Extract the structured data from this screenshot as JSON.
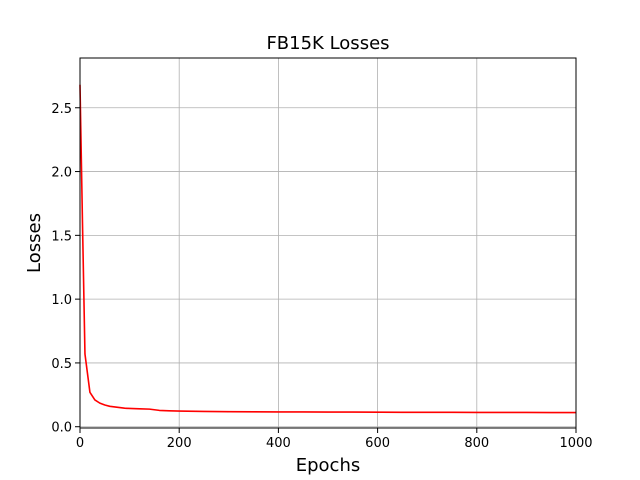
{
  "chart_data": {
    "type": "line",
    "title": "FB15K Losses",
    "xlabel": "Epochs",
    "ylabel": "Losses",
    "xlim": [
      0,
      1000
    ],
    "ylim": [
      -0.01,
      2.89
    ],
    "xticks": [
      0,
      200,
      400,
      600,
      800,
      1000
    ],
    "xtick_labels": [
      "0",
      "200",
      "400",
      "600",
      "800",
      "1000"
    ],
    "yticks": [
      0.0,
      0.5,
      1.0,
      1.5,
      2.0,
      2.5
    ],
    "ytick_labels": [
      "0.0",
      "0.5",
      "1.0",
      "1.5",
      "2.0",
      "2.5"
    ],
    "grid": true,
    "line_color": "#ff0000",
    "series": [
      {
        "x": [
          0,
          5,
          10,
          20,
          30,
          40,
          50,
          60,
          70,
          80,
          90,
          100,
          120,
          140,
          160,
          180,
          200,
          250,
          300,
          350,
          400,
          450,
          500,
          550,
          600,
          650,
          700,
          750,
          800,
          850,
          900,
          950,
          980,
          1000
        ],
        "y": [
          2.68,
          1.6,
          0.57,
          0.27,
          0.21,
          0.185,
          0.17,
          0.16,
          0.155,
          0.15,
          0.145,
          0.143,
          0.14,
          0.138,
          0.128,
          0.125,
          0.123,
          0.12,
          0.118,
          0.117,
          0.116,
          0.116,
          0.115,
          0.115,
          0.114,
          0.113,
          0.113,
          0.113,
          0.112,
          0.112,
          0.112,
          0.111,
          0.111,
          0.111
        ]
      }
    ]
  }
}
